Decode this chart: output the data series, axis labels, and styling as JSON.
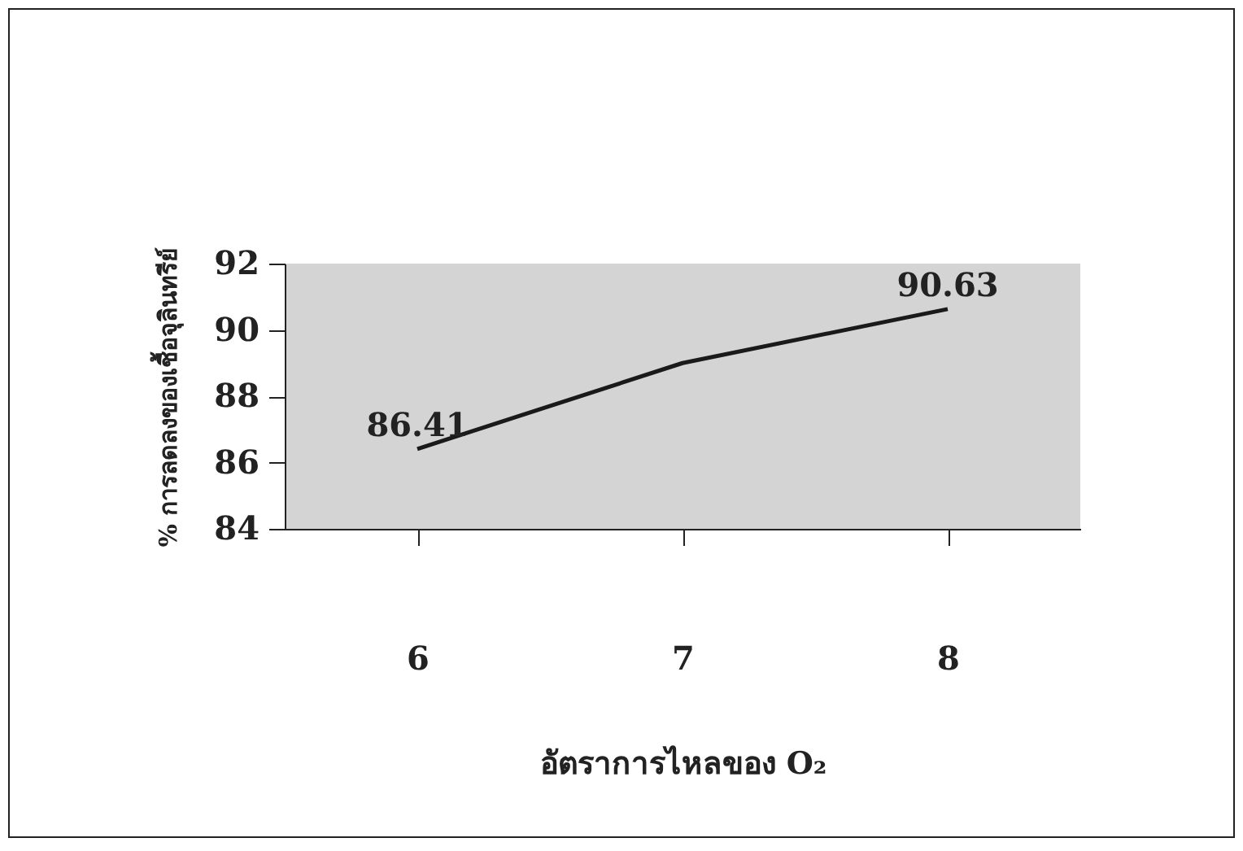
{
  "chart_data": {
    "type": "line",
    "xlabel": "อัตราการไหลของ O₂",
    "ylabel": "% การลดลงของเชื้อจุลินทรีย์",
    "categories": [
      "6",
      "7",
      "8"
    ],
    "series": [
      {
        "color": "#1a1a1a",
        "values": [
          86.41,
          89.0,
          90.63
        ],
        "value_labels": [
          "86.41",
          null,
          "90.63"
        ]
      }
    ],
    "ylim": [
      84,
      92
    ],
    "yticks": [
      84,
      86,
      88,
      90,
      92
    ],
    "grid": false,
    "legend": false,
    "marker": "none",
    "line_style": "solid"
  }
}
